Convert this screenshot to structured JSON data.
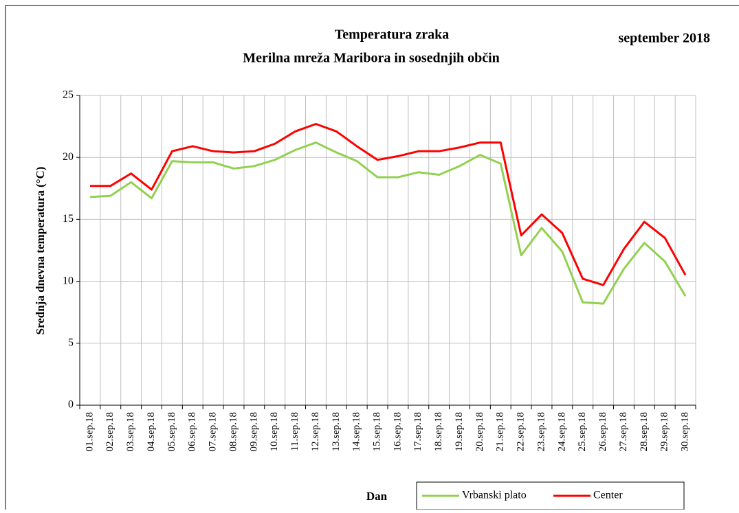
{
  "chart_data": {
    "type": "line",
    "title": "Temperatura zraka",
    "subtitle": "Merilna mreža Maribora in sosednjih občin",
    "period": "september 2018",
    "y_label": "Srednja dnevna temperatura (°C)",
    "x_label": "Dan",
    "categories": [
      "01.sep.18",
      "02.sep.18",
      "03.sep.18",
      "04.sep.18",
      "05.sep.18",
      "06.sep.18",
      "07.sep.18",
      "08.sep.18",
      "09.sep.18",
      "10.sep.18",
      "11.sep.18",
      "12.sep.18",
      "13.sep.18",
      "14.sep.18",
      "15.sep.18",
      "16.sep.18",
      "17.sep.18",
      "18.sep.18",
      "19.sep.18",
      "20.sep.18",
      "21.sep.18",
      "22.sep.18",
      "23.sep.18",
      "24.sep.18",
      "25.sep.18",
      "26.sep.18",
      "27.sep.18",
      "28.sep.18",
      "29.sep.18",
      "30.sep.18"
    ],
    "series": [
      {
        "name": "Vrbanski plato",
        "color": "#92d050",
        "values": [
          16.8,
          16.9,
          18.0,
          16.7,
          19.7,
          19.6,
          19.6,
          19.1,
          19.3,
          19.8,
          20.6,
          21.2,
          20.4,
          19.7,
          18.4,
          18.4,
          18.8,
          18.6,
          19.3,
          20.2,
          19.5,
          12.1,
          14.3,
          12.4,
          8.3,
          8.2,
          11.0,
          13.1,
          11.6,
          8.8
        ]
      },
      {
        "name": "Center",
        "color": "#ff0000",
        "values": [
          17.7,
          17.7,
          18.7,
          17.4,
          20.5,
          20.9,
          20.5,
          20.4,
          20.5,
          21.1,
          22.1,
          22.7,
          22.1,
          20.9,
          19.8,
          20.1,
          20.5,
          20.5,
          20.8,
          21.2,
          21.2,
          13.7,
          15.4,
          13.9,
          10.2,
          9.7,
          12.6,
          14.8,
          13.5,
          10.5
        ]
      }
    ],
    "ylim": [
      0,
      25
    ],
    "yticks": [
      0,
      5,
      10,
      15,
      20,
      25
    ],
    "grid": true
  }
}
